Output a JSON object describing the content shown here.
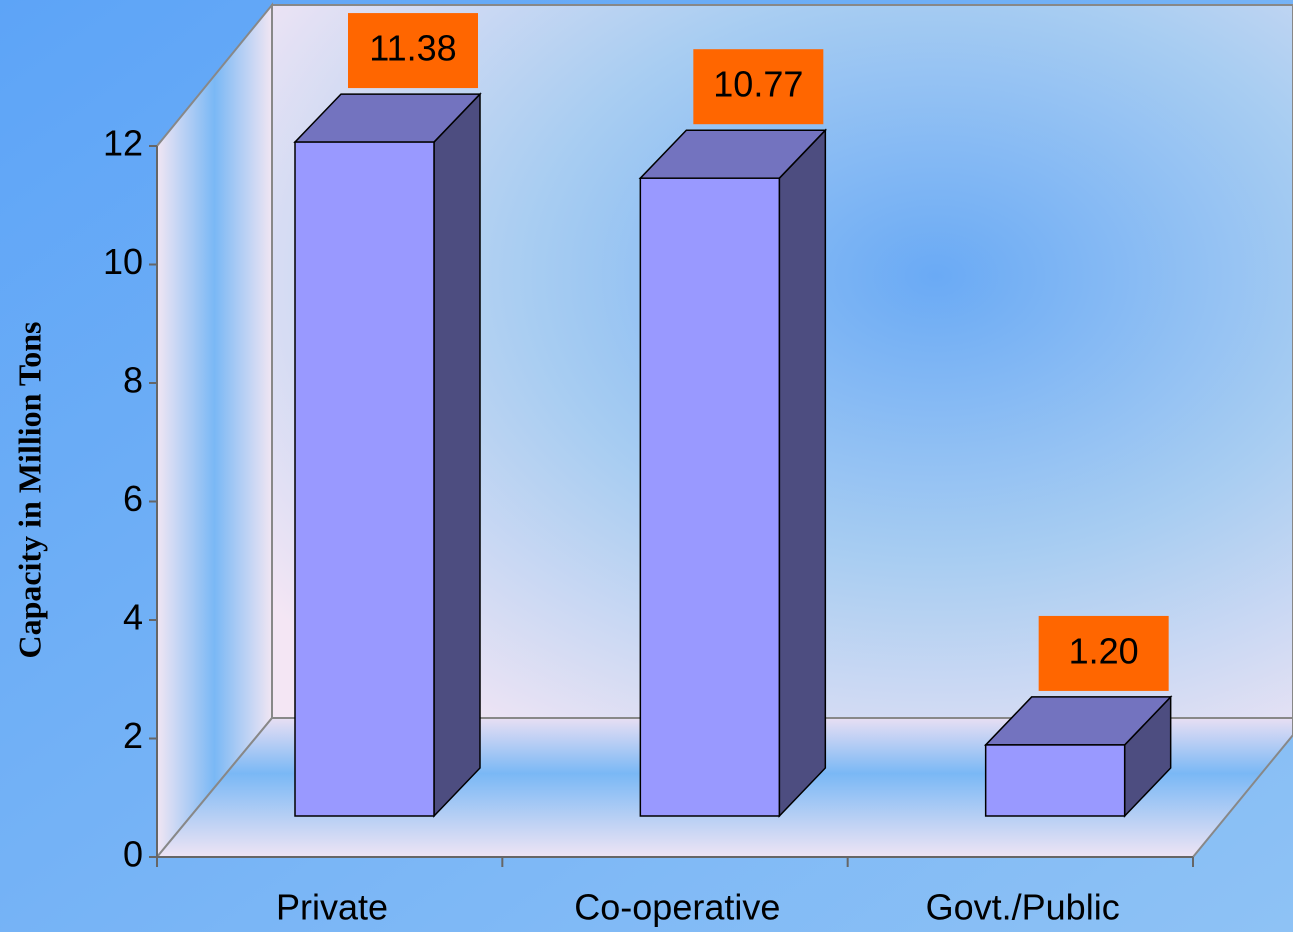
{
  "chart_data": {
    "type": "bar3d",
    "y_axis_label": "Capacity in Million Tons",
    "categories": [
      "Private",
      "Co-operative",
      "Govt./Public"
    ],
    "values": [
      11.38,
      10.77,
      1.2
    ],
    "value_labels": [
      "11.38",
      "10.77",
      "1.20"
    ],
    "color": "#9999ff",
    "side_color": "#4d4d80",
    "top_color": "#7373bf",
    "label_box_color": "#ff6600",
    "ylim": [
      0,
      12
    ],
    "yticks": [
      0,
      2,
      4,
      6,
      8,
      10,
      12
    ]
  }
}
